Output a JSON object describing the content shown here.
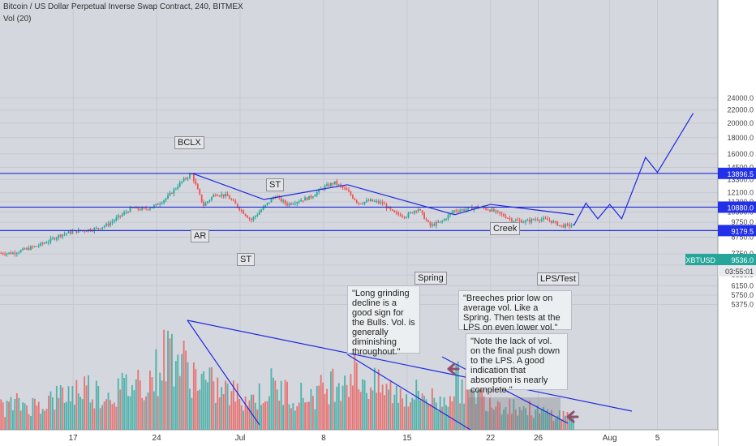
{
  "header": {
    "title": "Bitcoin / US Dollar Perpetual Inverse Swap Contract, 240, BITMEX",
    "indicator": "Vol (20)"
  },
  "colors": {
    "background": "#d4d7de",
    "up": "#26a69a",
    "down": "#ef5350",
    "line": "#1f2ae0",
    "price_label": "#2230e8",
    "ticker_label": "#26a69a"
  },
  "chart_data": {
    "type": "candlestick",
    "symbol": "XBTUSD",
    "y_scale": "log",
    "y_ticks": [
      24000,
      22000,
      20000,
      18000,
      16000,
      14500,
      13300,
      12100,
      11300,
      10500,
      9750,
      8750,
      7750,
      7150,
      6650,
      6150,
      5750,
      5375
    ],
    "x_ticks": [
      "17",
      "24",
      "Jul",
      "8",
      "15",
      "22",
      "26",
      "Aug",
      "5"
    ],
    "price_labels": [
      {
        "text": "13896.5"
      },
      {
        "text": "10880.0"
      },
      {
        "text": "9179.5"
      },
      {
        "text": "9536.0"
      },
      {
        "text": "03:55:01"
      },
      {
        "text": "XBTUSD"
      }
    ],
    "horizontal_lines": [
      13896.5,
      10880.0,
      9179.5
    ],
    "price_path": [
      [
        "Jun 12",
        7800
      ],
      [
        "Jun 13",
        8000
      ],
      [
        "Jun 14",
        8200
      ],
      [
        "Jun 15",
        8500
      ],
      [
        "Jun 16",
        8900
      ],
      [
        "Jun 17",
        9100
      ],
      [
        "Jun 18",
        9200
      ],
      [
        "Jun 19",
        9300
      ],
      [
        "Jun 20",
        9600
      ],
      [
        "Jun 21",
        10200
      ],
      [
        "Jun 22",
        10800
      ],
      [
        "Jun 23",
        10700
      ],
      [
        "Jun 24",
        11000
      ],
      [
        "Jun 25",
        11700
      ],
      [
        "Jun 26",
        12900
      ],
      [
        "Jun 27",
        13900
      ],
      [
        "Jun 28",
        11000
      ],
      [
        "Jun 29",
        12000
      ],
      [
        "Jun 30",
        11800
      ],
      [
        "Jul 1",
        10800
      ],
      [
        "Jul 2",
        9900
      ],
      [
        "Jul 3",
        10800
      ],
      [
        "Jul 4",
        11800
      ],
      [
        "Jul 5",
        11100
      ],
      [
        "Jul 6",
        11400
      ],
      [
        "Jul 7",
        11700
      ],
      [
        "Jul 8",
        12500
      ],
      [
        "Jul 9",
        13000
      ],
      [
        "Jul 10",
        12300
      ],
      [
        "Jul 11",
        11200
      ],
      [
        "Jul 12",
        11400
      ],
      [
        "Jul 13",
        11200
      ],
      [
        "Jul 14",
        10400
      ],
      [
        "Jul 15",
        10200
      ],
      [
        "Jul 16",
        10800
      ],
      [
        "Jul 17",
        9500
      ],
      [
        "Jul 18",
        9800
      ],
      [
        "Jul 19",
        10600
      ],
      [
        "Jul 20",
        10700
      ],
      [
        "Jul 21",
        10900
      ],
      [
        "Jul 22",
        10700
      ],
      [
        "Jul 23",
        10300
      ],
      [
        "Jul 24",
        9900
      ],
      [
        "Jul 25",
        9800
      ],
      [
        "Jul 26",
        10000
      ],
      [
        "Jul 27",
        9900
      ],
      [
        "Jul 28",
        9500
      ],
      [
        "Jul 29",
        9536
      ]
    ],
    "projection": [
      [
        "Jul 29",
        9536
      ],
      [
        "Jul 30",
        11200
      ],
      [
        "Jul 31",
        10000
      ],
      [
        "Aug 1",
        11100
      ],
      [
        "Aug 2",
        10000
      ],
      [
        "Aug 4",
        15600
      ],
      [
        "Aug 5",
        14000
      ],
      [
        "Aug 8",
        21500
      ]
    ],
    "trendlines": [
      {
        "from": [
          "Jun 27",
          13900
        ],
        "to": [
          "Jul 3",
          11500
        ]
      },
      {
        "from": [
          "Jul 3",
          11500
        ],
        "to": [
          "Jul 10",
          12800
        ]
      },
      {
        "from": [
          "Jul 10",
          12800
        ],
        "to": [
          "Jul 19",
          10300
        ]
      },
      {
        "from": [
          "Jul 19",
          10300
        ],
        "to": [
          "Jul 22",
          11100
        ]
      },
      {
        "from": [
          "Jul 22",
          11100
        ],
        "to": [
          "Jul 29",
          10300
        ]
      }
    ],
    "annotations": [
      {
        "text": "BCLX",
        "at": [
          "Jun 27",
          14500
        ]
      },
      {
        "text": "AR",
        "at": [
          "Jun 28",
          10000
        ]
      },
      {
        "text": "ST",
        "at": [
          "Jul 2",
          9000
        ]
      },
      {
        "text": "ST",
        "at": [
          "Jul 5",
          12700
        ]
      },
      {
        "text": "Spring",
        "at": [
          "Jul 17",
          9000
        ]
      },
      {
        "text": "Creek",
        "at": [
          "Jul 24",
          10700
        ]
      },
      {
        "text": "LPS/Test",
        "at": [
          "Jul 29",
          8950
        ]
      }
    ],
    "notes": [
      "\"Long grinding decline is a good sign for the Bulls. Vol. is generally diminishing throughout.\"",
      "\"Breeches prior low on average vol. Like a Spring. Then tests at the LPS on even lower vol.\"",
      "\"Note the lack of vol. on the final push down to the LPS. A good indication that absorption is nearly complete.\""
    ],
    "volume": {
      "indicator": "Vol (20)",
      "note": "volume bars are relative heights on a 0-1 scale",
      "profile": [
        0.25,
        0.3,
        0.28,
        0.35,
        0.42,
        0.5,
        0.4,
        0.45,
        0.55,
        0.6,
        0.95,
        0.7,
        0.55,
        0.45,
        0.4,
        0.35,
        0.5,
        0.42,
        0.38,
        0.45,
        0.6,
        0.65,
        0.5,
        0.45,
        0.4,
        0.42,
        0.3,
        0.55,
        0.48,
        0.35,
        0.3,
        0.25,
        0.2,
        0.18,
        0.15
      ]
    }
  }
}
